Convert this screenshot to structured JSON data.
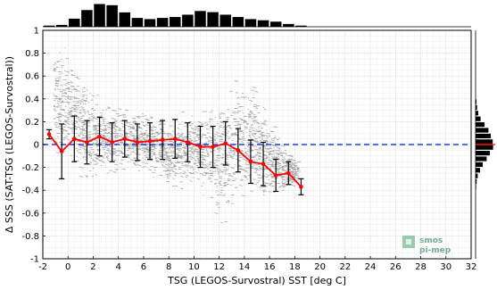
{
  "chart_data": {
    "type": "scatter",
    "xlabel": "TSG (LEGOS-Survostral) SST [deg C]",
    "ylabel": "Δ SSS (SAT-TSG (LEGOS-Survostral))",
    "xlim": [
      -2,
      32
    ],
    "ylim": [
      -1,
      1
    ],
    "xticks": [
      "-2",
      "0",
      "2",
      "4",
      "6",
      "8",
      "10",
      "12",
      "14",
      "16",
      "18",
      "20",
      "22",
      "24",
      "26",
      "28",
      "30",
      "32"
    ],
    "yticks": [
      "-1",
      "-0.8",
      "-0.6",
      "-0.4",
      "-0.2",
      "0",
      "0.2",
      "0.4",
      "0.6",
      "0.8",
      "1"
    ],
    "grid": true,
    "reference_line": {
      "y": 0,
      "style": "dashed",
      "color": "#1f3fe0"
    },
    "series": [
      {
        "style": "line-markers",
        "color": "#ff0000",
        "x": [
          -1.5,
          -0.5,
          0.5,
          1.5,
          2.5,
          3.5,
          4.5,
          5.5,
          6.5,
          7.5,
          8.5,
          9.5,
          10.5,
          11.5,
          12.5,
          13.5,
          14.5,
          15.5,
          16.5,
          17.5,
          18.5
        ],
        "y": [
          0.09,
          -0.06,
          0.05,
          0.02,
          0.07,
          0.02,
          0.05,
          0.02,
          0.03,
          0.04,
          0.05,
          0.02,
          -0.02,
          -0.02,
          0.01,
          -0.05,
          -0.15,
          -0.17,
          -0.27,
          -0.25,
          -0.37
        ],
        "err": [
          0.04,
          0.24,
          0.2,
          0.19,
          0.17,
          0.17,
          0.16,
          0.16,
          0.16,
          0.17,
          0.17,
          0.17,
          0.18,
          0.18,
          0.19,
          0.19,
          0.19,
          0.19,
          0.14,
          0.1,
          0.07
        ]
      }
    ],
    "scatter_cloud": {
      "color": "#8c8c8c",
      "description_envelope": [
        [
          -1.0,
          -0.1,
          0.95
        ],
        [
          0.0,
          -0.2,
          0.85
        ],
        [
          1.0,
          -0.4,
          0.7
        ],
        [
          2.0,
          -0.35,
          0.5
        ],
        [
          3.0,
          -0.3,
          0.4
        ],
        [
          4.0,
          -0.3,
          0.35
        ],
        [
          5.0,
          -0.25,
          0.35
        ],
        [
          6.0,
          -0.25,
          0.3
        ],
        [
          7.0,
          -0.3,
          0.3
        ],
        [
          8.0,
          -0.4,
          0.25
        ],
        [
          9.0,
          -0.4,
          0.3
        ],
        [
          10.0,
          -0.35,
          0.3
        ],
        [
          11.0,
          -0.5,
          0.35
        ],
        [
          12.0,
          -0.7,
          0.5
        ],
        [
          13.0,
          -0.6,
          0.55
        ],
        [
          14.0,
          -0.5,
          0.65
        ],
        [
          15.0,
          -0.5,
          0.5
        ],
        [
          16.0,
          -0.5,
          0.25
        ],
        [
          17.0,
          -0.45,
          0.05
        ],
        [
          18.0,
          -0.4,
          -0.1
        ]
      ]
    },
    "top_histogram": {
      "bin_width": 1,
      "x": [
        -1.5,
        -0.5,
        0.5,
        1.5,
        2.5,
        3.5,
        4.5,
        5.5,
        6.5,
        7.5,
        8.5,
        9.5,
        10.5,
        11.5,
        12.5,
        13.5,
        14.5,
        15.5,
        16.5,
        17.5,
        18.5
      ],
      "counts": [
        0.05,
        0.08,
        0.35,
        0.72,
        0.98,
        0.93,
        0.62,
        0.38,
        0.33,
        0.38,
        0.42,
        0.52,
        0.68,
        0.63,
        0.52,
        0.42,
        0.33,
        0.28,
        0.22,
        0.12,
        0.05
      ]
    },
    "right_histogram": {
      "bin_width": 0.05,
      "y": [
        0.375,
        0.325,
        0.275,
        0.225,
        0.175,
        0.125,
        0.075,
        0.025,
        -0.025,
        -0.075,
        -0.125,
        -0.175,
        -0.225,
        -0.275,
        -0.325,
        -0.375
      ],
      "counts": [
        0.05,
        0.08,
        0.15,
        0.28,
        0.5,
        0.72,
        0.85,
        0.96,
        0.98,
        0.8,
        0.62,
        0.4,
        0.25,
        0.12,
        0.06,
        0.03
      ]
    }
  },
  "logo": {
    "line1": "smos",
    "line2": "pi-mep"
  }
}
